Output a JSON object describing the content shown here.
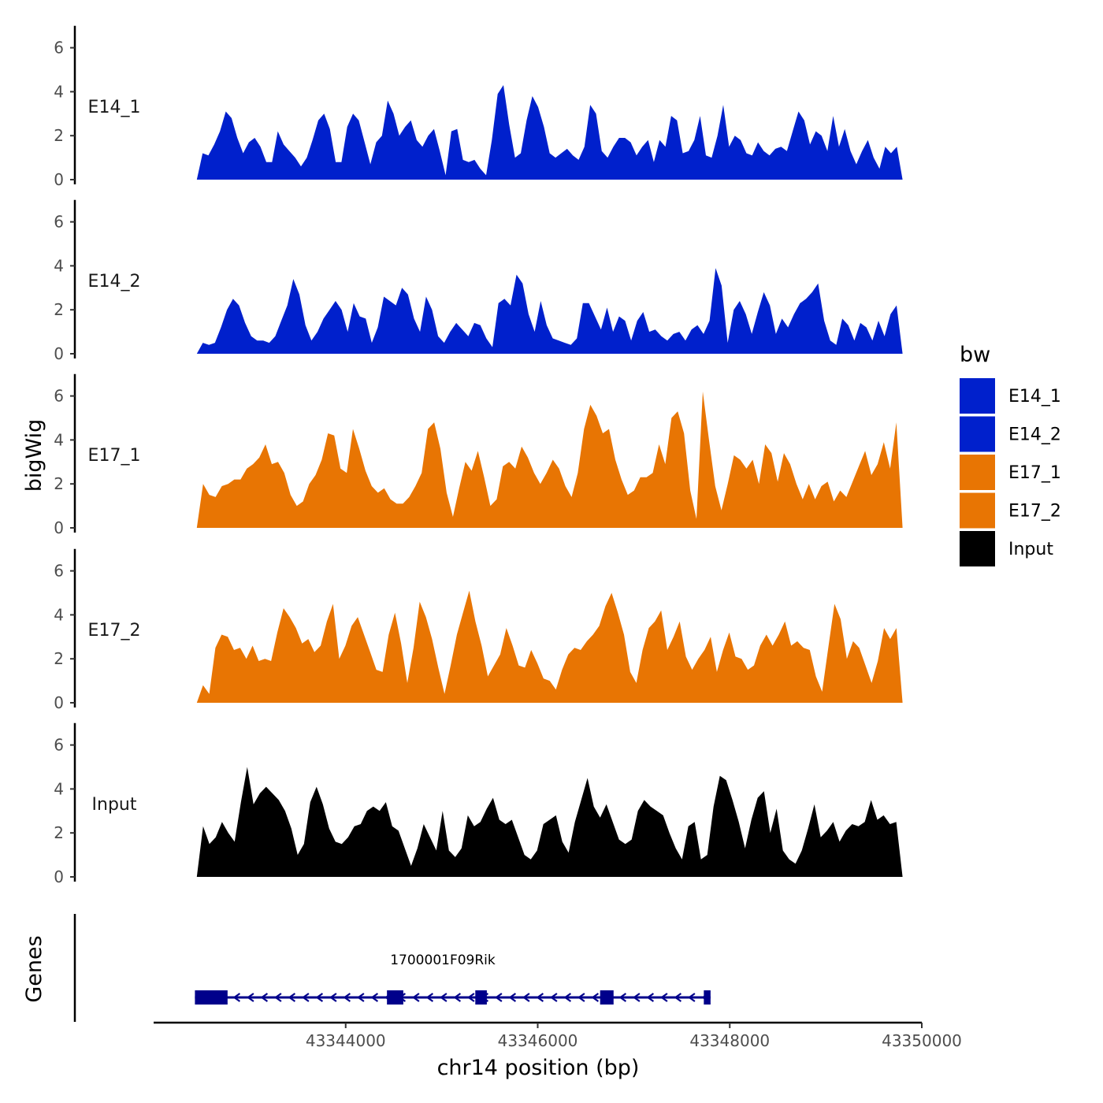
{
  "chart_data": {
    "type": "area",
    "title": "",
    "xlabel": "chr14 position (bp)",
    "ylabel": "bigWig",
    "genes_label": "Genes",
    "xlim": [
      43342000,
      43350000
    ],
    "xticks": [
      43344000,
      43346000,
      43348000,
      43350000
    ],
    "xtick_labels": [
      "43344000",
      "43346000",
      "43348000",
      "43350000"
    ],
    "ylim": [
      0,
      7
    ],
    "yticks": [
      0,
      2,
      4,
      6
    ],
    "ytick_labels": [
      "0",
      "2",
      "4",
      "6"
    ],
    "x_range": [
      43342450,
      43349800
    ],
    "legend": {
      "title": "bw",
      "position": "right",
      "entries": [
        {
          "label": "E14_1",
          "color": "#0020CC"
        },
        {
          "label": "E14_2",
          "color": "#0020CC"
        },
        {
          "label": "E17_1",
          "color": "#E87503"
        },
        {
          "label": "E17_2",
          "color": "#E87503"
        },
        {
          "label": "Input",
          "color": "#000000"
        }
      ]
    },
    "series": [
      {
        "name": "E14_1",
        "color": "#0020CC",
        "values": [
          0.0,
          1.2,
          1.1,
          1.6,
          2.2,
          3.1,
          2.8,
          1.9,
          1.2,
          1.7,
          1.9,
          1.5,
          0.8,
          0.8,
          2.2,
          1.6,
          1.3,
          1.0,
          0.6,
          1.0,
          1.8,
          2.7,
          3.0,
          2.3,
          0.8,
          0.8,
          2.4,
          3.0,
          2.7,
          1.7,
          0.7,
          1.7,
          2.0,
          3.6,
          3.0,
          2.0,
          2.4,
          2.7,
          1.8,
          1.5,
          2.0,
          2.3,
          1.3,
          0.2,
          2.2,
          2.3,
          0.9,
          0.8,
          0.9,
          0.5,
          0.2,
          1.8,
          3.9,
          4.3,
          2.5,
          1.0,
          1.2,
          2.7,
          3.8,
          3.3,
          2.4,
          1.2,
          1.0,
          1.2,
          1.4,
          1.1,
          0.9,
          1.5,
          3.4,
          3.0,
          1.3,
          1.0,
          1.5,
          1.9,
          1.9,
          1.7,
          1.1,
          1.5,
          1.8,
          0.8,
          1.8,
          1.5,
          2.9,
          2.7,
          1.2,
          1.3,
          1.8,
          2.9,
          1.1,
          1.0,
          2.0,
          3.4,
          1.5,
          2.0,
          1.8,
          1.2,
          1.1,
          1.7,
          1.3,
          1.1,
          1.4,
          1.5,
          1.3,
          2.2,
          3.1,
          2.7,
          1.6,
          2.2,
          2.0,
          1.3,
          2.9,
          1.5,
          2.3,
          1.3,
          0.7,
          1.3,
          1.8,
          1.0,
          0.5,
          1.5,
          1.2,
          1.5,
          0.0
        ]
      },
      {
        "name": "E14_2",
        "color": "#0020CC",
        "values": [
          0.0,
          0.5,
          0.4,
          0.5,
          1.2,
          2.0,
          2.5,
          2.2,
          1.4,
          0.8,
          0.6,
          0.6,
          0.5,
          0.8,
          1.5,
          2.2,
          3.4,
          2.7,
          1.3,
          0.6,
          1.0,
          1.6,
          2.0,
          2.4,
          2.0,
          1.0,
          2.3,
          1.7,
          1.6,
          0.5,
          1.2,
          2.6,
          2.4,
          2.2,
          3.0,
          2.7,
          1.6,
          1.0,
          2.6,
          2.0,
          0.8,
          0.5,
          1.0,
          1.4,
          1.1,
          0.8,
          1.4,
          1.3,
          0.7,
          0.3,
          2.3,
          2.5,
          2.2,
          3.6,
          3.2,
          1.8,
          1.0,
          2.4,
          1.3,
          0.7,
          0.6,
          0.5,
          0.4,
          0.7,
          2.3,
          2.3,
          1.7,
          1.1,
          2.1,
          1.0,
          1.7,
          1.5,
          0.6,
          1.5,
          1.9,
          1.0,
          1.1,
          0.8,
          0.6,
          0.9,
          1.0,
          0.6,
          1.1,
          1.3,
          0.9,
          1.5,
          3.9,
          3.1,
          0.5,
          2.0,
          2.4,
          1.8,
          0.9,
          1.9,
          2.8,
          2.2,
          0.9,
          1.6,
          1.2,
          1.8,
          2.3,
          2.5,
          2.8,
          3.2,
          1.5,
          0.6,
          0.4,
          1.6,
          1.3,
          0.6,
          1.4,
          1.2,
          0.6,
          1.5,
          0.8,
          1.8,
          2.2,
          0.0
        ]
      },
      {
        "name": "E17_1",
        "color": "#E87503",
        "values": [
          0.0,
          2.0,
          1.5,
          1.4,
          1.9,
          2.0,
          2.2,
          2.2,
          2.7,
          2.9,
          3.2,
          3.8,
          2.9,
          3.0,
          2.5,
          1.5,
          1.0,
          1.2,
          2.0,
          2.4,
          3.1,
          4.3,
          4.2,
          2.7,
          2.5,
          4.5,
          3.6,
          2.6,
          1.9,
          1.6,
          1.8,
          1.3,
          1.1,
          1.1,
          1.4,
          1.9,
          2.5,
          4.5,
          4.8,
          3.6,
          1.6,
          0.5,
          1.8,
          3.0,
          2.6,
          3.5,
          2.3,
          1.0,
          1.3,
          2.8,
          3.0,
          2.7,
          3.7,
          3.2,
          2.5,
          2.0,
          2.5,
          3.1,
          2.7,
          1.9,
          1.4,
          2.5,
          4.5,
          5.6,
          5.1,
          4.3,
          4.5,
          3.1,
          2.2,
          1.5,
          1.7,
          2.3,
          2.3,
          2.5,
          3.8,
          2.9,
          5.0,
          5.3,
          4.3,
          1.7,
          0.4,
          6.2,
          4.0,
          1.9,
          0.8,
          2.0,
          3.3,
          3.1,
          2.7,
          3.1,
          2.0,
          3.8,
          3.4,
          2.1,
          3.4,
          2.9,
          2.0,
          1.3,
          2.0,
          1.3,
          1.9,
          2.1,
          1.2,
          1.7,
          1.4,
          2.1,
          2.8,
          3.5,
          2.4,
          2.9,
          3.9,
          2.7,
          4.8,
          0.0
        ]
      },
      {
        "name": "E17_2",
        "color": "#E87503",
        "values": [
          0.0,
          0.8,
          0.4,
          2.5,
          3.1,
          3.0,
          2.4,
          2.5,
          2.0,
          2.6,
          1.9,
          2.0,
          1.9,
          3.2,
          4.3,
          3.9,
          3.4,
          2.7,
          2.9,
          2.3,
          2.6,
          3.7,
          4.5,
          2.0,
          2.6,
          3.5,
          3.9,
          3.1,
          2.3,
          1.5,
          1.4,
          3.1,
          4.1,
          2.7,
          0.9,
          2.5,
          4.6,
          3.9,
          2.9,
          1.6,
          0.4,
          1.7,
          3.1,
          4.1,
          5.1,
          3.7,
          2.6,
          1.2,
          1.7,
          2.2,
          3.4,
          2.6,
          1.7,
          1.6,
          2.4,
          1.8,
          1.1,
          1.0,
          0.6,
          1.5,
          2.2,
          2.5,
          2.4,
          2.8,
          3.1,
          3.5,
          4.4,
          5.0,
          4.1,
          3.1,
          1.4,
          0.9,
          2.4,
          3.4,
          3.7,
          4.2,
          2.4,
          3.0,
          3.7,
          2.1,
          1.5,
          2.0,
          2.4,
          3.0,
          1.4,
          2.4,
          3.2,
          2.1,
          2.0,
          1.5,
          1.7,
          2.6,
          3.1,
          2.6,
          3.1,
          3.7,
          2.6,
          2.8,
          2.5,
          2.4,
          1.2,
          0.5,
          2.5,
          4.5,
          3.8,
          2.0,
          2.8,
          2.5,
          1.7,
          0.9,
          1.9,
          3.4,
          2.9,
          3.4,
          0.0
        ]
      },
      {
        "name": "Input",
        "color": "#000000",
        "values": [
          0.0,
          2.3,
          1.5,
          1.8,
          2.5,
          2.0,
          1.6,
          3.4,
          5.0,
          3.3,
          3.8,
          4.1,
          3.8,
          3.5,
          3.0,
          2.2,
          1.0,
          1.5,
          3.4,
          4.1,
          3.3,
          2.2,
          1.6,
          1.5,
          1.8,
          2.3,
          2.4,
          3.0,
          3.2,
          3.0,
          3.4,
          2.3,
          2.1,
          1.3,
          0.5,
          1.3,
          2.4,
          1.8,
          1.2,
          3.0,
          1.2,
          0.9,
          1.3,
          2.8,
          2.3,
          2.5,
          3.1,
          3.6,
          2.6,
          2.4,
          2.6,
          1.8,
          1.0,
          0.8,
          1.2,
          2.4,
          2.6,
          2.8,
          1.6,
          1.1,
          2.5,
          3.5,
          4.5,
          3.2,
          2.7,
          3.3,
          2.5,
          1.7,
          1.5,
          1.7,
          3.0,
          3.5,
          3.2,
          3.0,
          2.8,
          2.0,
          1.3,
          0.8,
          2.3,
          2.5,
          0.8,
          1.0,
          3.2,
          4.6,
          4.4,
          3.5,
          2.5,
          1.3,
          2.6,
          3.6,
          3.9,
          2.0,
          3.1,
          1.2,
          0.8,
          0.6,
          1.2,
          2.2,
          3.3,
          1.8,
          2.1,
          2.5,
          1.6,
          2.1,
          2.4,
          2.3,
          2.5,
          3.5,
          2.6,
          2.8,
          2.4,
          2.5,
          0.0
        ]
      }
    ],
    "gene": {
      "name": "1700001F09Rik",
      "strand": "-",
      "start": 43342430,
      "end": 43347800,
      "exons": [
        [
          43342430,
          43342770
        ],
        [
          43344430,
          43344600
        ],
        [
          43345350,
          43345470
        ],
        [
          43346650,
          43346790
        ],
        [
          43347730,
          43347800
        ]
      ],
      "color": "#00008B"
    }
  }
}
